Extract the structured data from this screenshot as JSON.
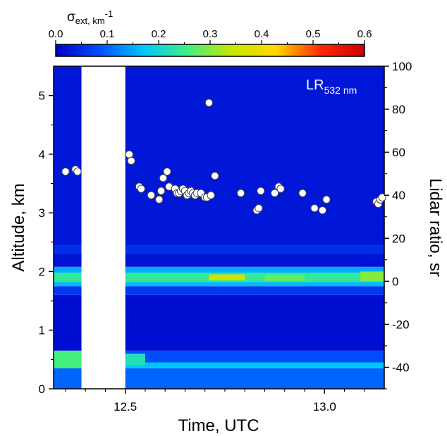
{
  "chart_data": {
    "type": "heatmap",
    "xlabel": "Time, UTC",
    "ylabel_left": "Altitude, km",
    "ylabel_right": "Lidar ratio, sr",
    "xlim": [
      12.32,
      13.15
    ],
    "ylim_left": [
      0,
      5.5
    ],
    "ylim_right": [
      -50,
      100
    ],
    "x_ticks": [
      12.5,
      13.0
    ],
    "x_tick_labels": [
      "12.5",
      "13.0"
    ],
    "y_left_ticks": [
      0,
      1,
      2,
      3,
      4,
      5
    ],
    "y_left_tick_labels": [
      "0",
      "1",
      "2",
      "3",
      "4",
      "5"
    ],
    "y_right_ticks": [
      -40,
      -20,
      0,
      20,
      40,
      60,
      80,
      100
    ],
    "y_right_tick_labels": [
      "-40",
      "-20",
      "0",
      "20",
      "40",
      "60",
      "80",
      "100"
    ],
    "colorbar": {
      "title_main": "σ",
      "title_sub": "ext,",
      "title_unit": " km",
      "title_exp": "-1",
      "range": [
        0,
        0.6
      ],
      "ticks": [
        0.0,
        0.1,
        0.2,
        0.3,
        0.4,
        0.5,
        0.6
      ],
      "tick_labels": [
        "0.0",
        "0.1",
        "0.2",
        "0.3",
        "0.4",
        "0.5",
        "0.6"
      ],
      "colors": [
        "#0000c8",
        "#0050ff",
        "#00c8ff",
        "#40f080",
        "#c8e600",
        "#ffd800",
        "#ff2800",
        "#cc0000"
      ]
    },
    "gap": [
      12.39,
      12.5
    ],
    "heatmap_layers": [
      {
        "z": [
          0.0,
          0.35
        ],
        "value": 0.1
      },
      {
        "z": [
          0.35,
          0.45
        ],
        "value": 0.17
      },
      {
        "z": [
          0.45,
          0.65
        ],
        "value": 0.08
      },
      {
        "z": [
          0.65,
          1.6
        ],
        "value": 0.015
      },
      {
        "z": [
          1.6,
          1.75
        ],
        "value": 0.06
      },
      {
        "z": [
          1.75,
          1.82
        ],
        "value": 0.16
      },
      {
        "z": [
          1.82,
          1.98
        ],
        "value": 0.24
      },
      {
        "z": [
          1.98,
          2.08
        ],
        "value": 0.15
      },
      {
        "z": [
          2.08,
          2.3
        ],
        "value": 0.02
      },
      {
        "z": [
          2.3,
          2.45
        ],
        "value": 0.05
      },
      {
        "z": [
          2.45,
          5.5
        ],
        "value": 0.025
      }
    ],
    "heatmap_hotspots": [
      {
        "x": [
          12.71,
          12.8
        ],
        "z": [
          1.85,
          1.95
        ],
        "value": 0.36
      },
      {
        "x": [
          12.85,
          12.95
        ],
        "z": [
          1.84,
          1.94
        ],
        "value": 0.28
      },
      {
        "x": [
          13.09,
          13.15
        ],
        "z": [
          1.84,
          2.0
        ],
        "value": 0.3
      },
      {
        "x": [
          12.32,
          12.39
        ],
        "z": [
          0.35,
          0.65
        ],
        "value": 0.26
      },
      {
        "x": [
          12.5,
          12.55
        ],
        "z": [
          0.4,
          0.6
        ],
        "value": 0.22
      }
    ],
    "series": [
      {
        "name": "LR",
        "name_sub": "532 nm",
        "marker": "circle",
        "x": [
          12.35,
          12.375,
          12.38,
          12.51,
          12.515,
          12.535,
          12.54,
          12.565,
          12.585,
          12.59,
          12.595,
          12.605,
          12.61,
          12.625,
          12.63,
          12.635,
          12.64,
          12.645,
          12.65,
          12.655,
          12.66,
          12.665,
          12.67,
          12.675,
          12.68,
          12.69,
          12.7,
          12.705,
          12.715,
          12.725,
          12.79,
          12.83,
          12.835,
          12.84,
          12.875,
          12.885,
          12.89,
          12.945,
          12.975,
          12.995,
          13.005,
          13.13,
          13.135,
          13.14,
          13.145
        ],
        "y": [
          51,
          52,
          51,
          59,
          56,
          44,
          43,
          40,
          38,
          42,
          48,
          51,
          44,
          43,
          41,
          41,
          42,
          43,
          42,
          40,
          41,
          42,
          41,
          40,
          41,
          41,
          39,
          39,
          40,
          49,
          41,
          33,
          34,
          42,
          41,
          44,
          43,
          41,
          34,
          33,
          38,
          37,
          36,
          38,
          39
        ]
      },
      {
        "name": "legend_marker",
        "x": [
          12.71
        ],
        "y": [
          83
        ]
      }
    ]
  }
}
